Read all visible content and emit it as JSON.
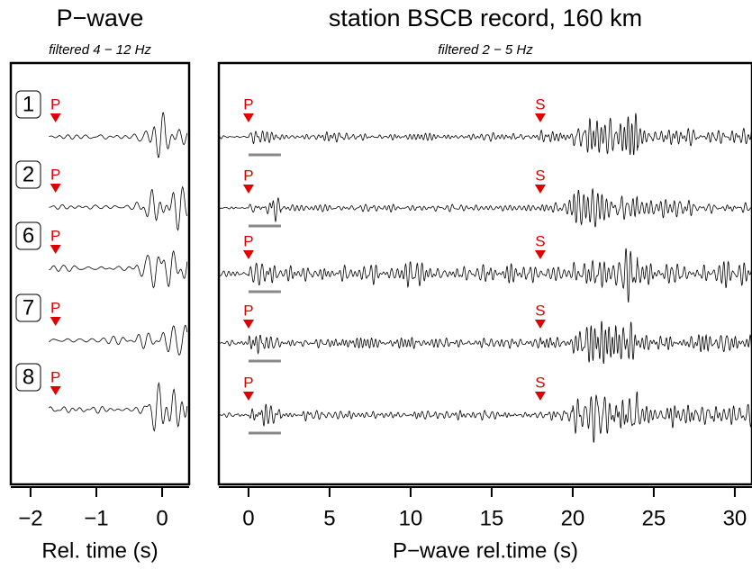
{
  "chart_data": [
    {
      "type": "waveform",
      "title": "P−wave",
      "subtitle": "filtered 4 − 12 Hz",
      "x_label": "Rel. time (s)",
      "xlim": [
        -2.3,
        0.41
      ],
      "xticks": [
        {
          "value": -2,
          "label": "−2"
        },
        {
          "value": -1,
          "label": "−1"
        },
        0
      ],
      "traces": [
        "1",
        "2",
        "6",
        "7",
        "8"
      ],
      "markers": [
        {
          "label": "P",
          "x": -1.62,
          "color": "#e00000"
        }
      ]
    },
    {
      "type": "waveform",
      "title": "station BSCB record, 160 km",
      "subtitle": "filtered 2 − 5 Hz",
      "x_label": "P−wave rel.time (s)",
      "xlim": [
        -1.83,
        31.06
      ],
      "xticks": [
        0,
        5,
        10,
        15,
        20,
        25,
        30
      ],
      "markers": [
        {
          "label": "P",
          "x": 0,
          "color": "#e00000"
        },
        {
          "label": "S",
          "x": 18,
          "color": "#e00000"
        }
      ],
      "window": [
        0,
        2
      ],
      "window_color": "#888888"
    }
  ]
}
